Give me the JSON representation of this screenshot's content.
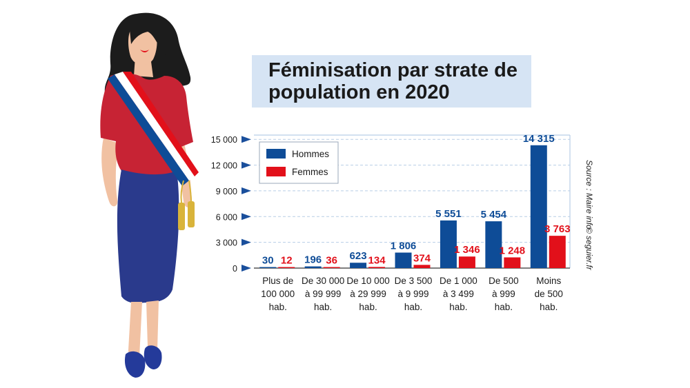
{
  "title": "Féminisation par strate de population en 2020",
  "source": "Source : Maire info",
  "credit": "© seguier.fr",
  "colors": {
    "hommes": "#0e4c97",
    "femmes": "#e2101a",
    "title_bg": "#d6e4f4",
    "grid": "#b7cde6",
    "tick_arrow": "#1a4f9c",
    "skin": "#f1c1a2",
    "hair": "#1c1c1c",
    "blouse": "#c72334",
    "skirt": "#2a3a8c",
    "shoes": "#243a9a",
    "tassel": "#d9b43a"
  },
  "chart_data": {
    "type": "bar",
    "title": "Féminisation par strate de population en 2020",
    "categories": [
      [
        "Plus de",
        "100 000",
        "hab."
      ],
      [
        "De 30 000",
        "à 99 999",
        "hab."
      ],
      [
        "De 10 000",
        "à 29 999",
        "hab."
      ],
      [
        "De 3 500",
        "à 9 999",
        "hab."
      ],
      [
        "De 1 000",
        "à 3 499",
        "hab."
      ],
      [
        "De 500",
        "à 999",
        "hab."
      ],
      [
        "Moins",
        "de 500",
        "hab."
      ]
    ],
    "series": [
      {
        "name": "Hommes",
        "values": [
          30,
          196,
          623,
          1806,
          5551,
          5454,
          14315
        ],
        "labels": [
          "30",
          "196",
          "623",
          "1 806",
          "5 551",
          "5 454",
          "14 315"
        ]
      },
      {
        "name": "Femmes",
        "values": [
          12,
          36,
          134,
          374,
          1346,
          1248,
          3763
        ],
        "labels": [
          "12",
          "36",
          "134",
          "374",
          "1 346",
          "1 248",
          "3 763"
        ]
      }
    ],
    "yticks": [
      0,
      3000,
      6000,
      9000,
      12000,
      15000
    ],
    "ytick_labels": [
      "0",
      "3 000",
      "6 000",
      "9 000",
      "12 000",
      "15 000"
    ],
    "ylim": [
      0,
      15500
    ],
    "grid": true,
    "legend_position": "top-left"
  }
}
